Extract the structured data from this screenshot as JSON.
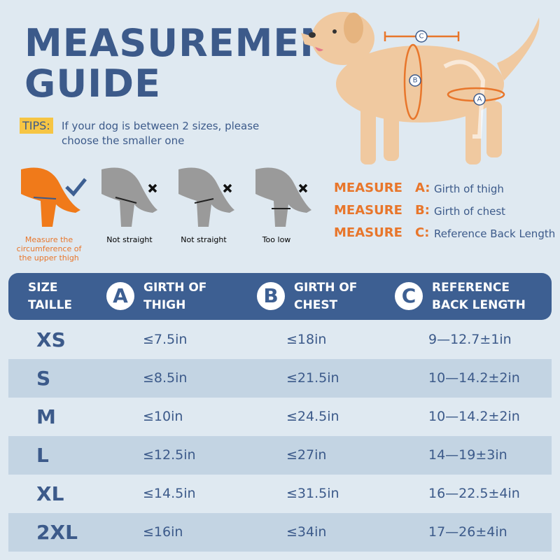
{
  "title": [
    "MEASUREMENT",
    "GUIDE"
  ],
  "tips": {
    "label": "TIPS:",
    "text": "If your dog is between  2 sizes, please choose the smaller one"
  },
  "dog_labels": [
    "C",
    "B",
    "A"
  ],
  "examples": [
    "Measure the circumference of the upper thigh",
    "Not straight",
    "Not straight",
    "Too low"
  ],
  "measures": [
    {
      "prefix": "MEASURE",
      "letter": "A:",
      "text": "Girth of thigh"
    },
    {
      "prefix": "MEASURE",
      "letter": "B:",
      "text": "Girth of chest"
    },
    {
      "prefix": "MEASURE",
      "letter": "C:",
      "text": "Reference Back Length"
    }
  ],
  "table": {
    "header": [
      {
        "lines": [
          "SIZE",
          "TAILLE"
        ]
      },
      {
        "badge": "A",
        "lines": [
          "GIRTH OF",
          "THIGH"
        ]
      },
      {
        "badge": "B",
        "lines": [
          "GIRTH OF",
          "CHEST"
        ]
      },
      {
        "badge": "C",
        "lines": [
          "REFERENCE",
          "BACK LENGTH"
        ]
      }
    ],
    "rows": [
      [
        "XS",
        "≤7.5in",
        "≤18in",
        "9—12.7±1in"
      ],
      [
        "S",
        "≤8.5in",
        "≤21.5in",
        "10—14.2±2in"
      ],
      [
        "M",
        "≤10in",
        "≤24.5in",
        "10—14.2±2in"
      ],
      [
        "L",
        "≤12.5in",
        "≤27in",
        "14—19±3in"
      ],
      [
        "XL",
        "≤14.5in",
        "≤31.5in",
        "16—22.5±4in"
      ],
      [
        "2XL",
        "≤16in",
        "≤34in",
        "17—26±4in"
      ]
    ]
  }
}
